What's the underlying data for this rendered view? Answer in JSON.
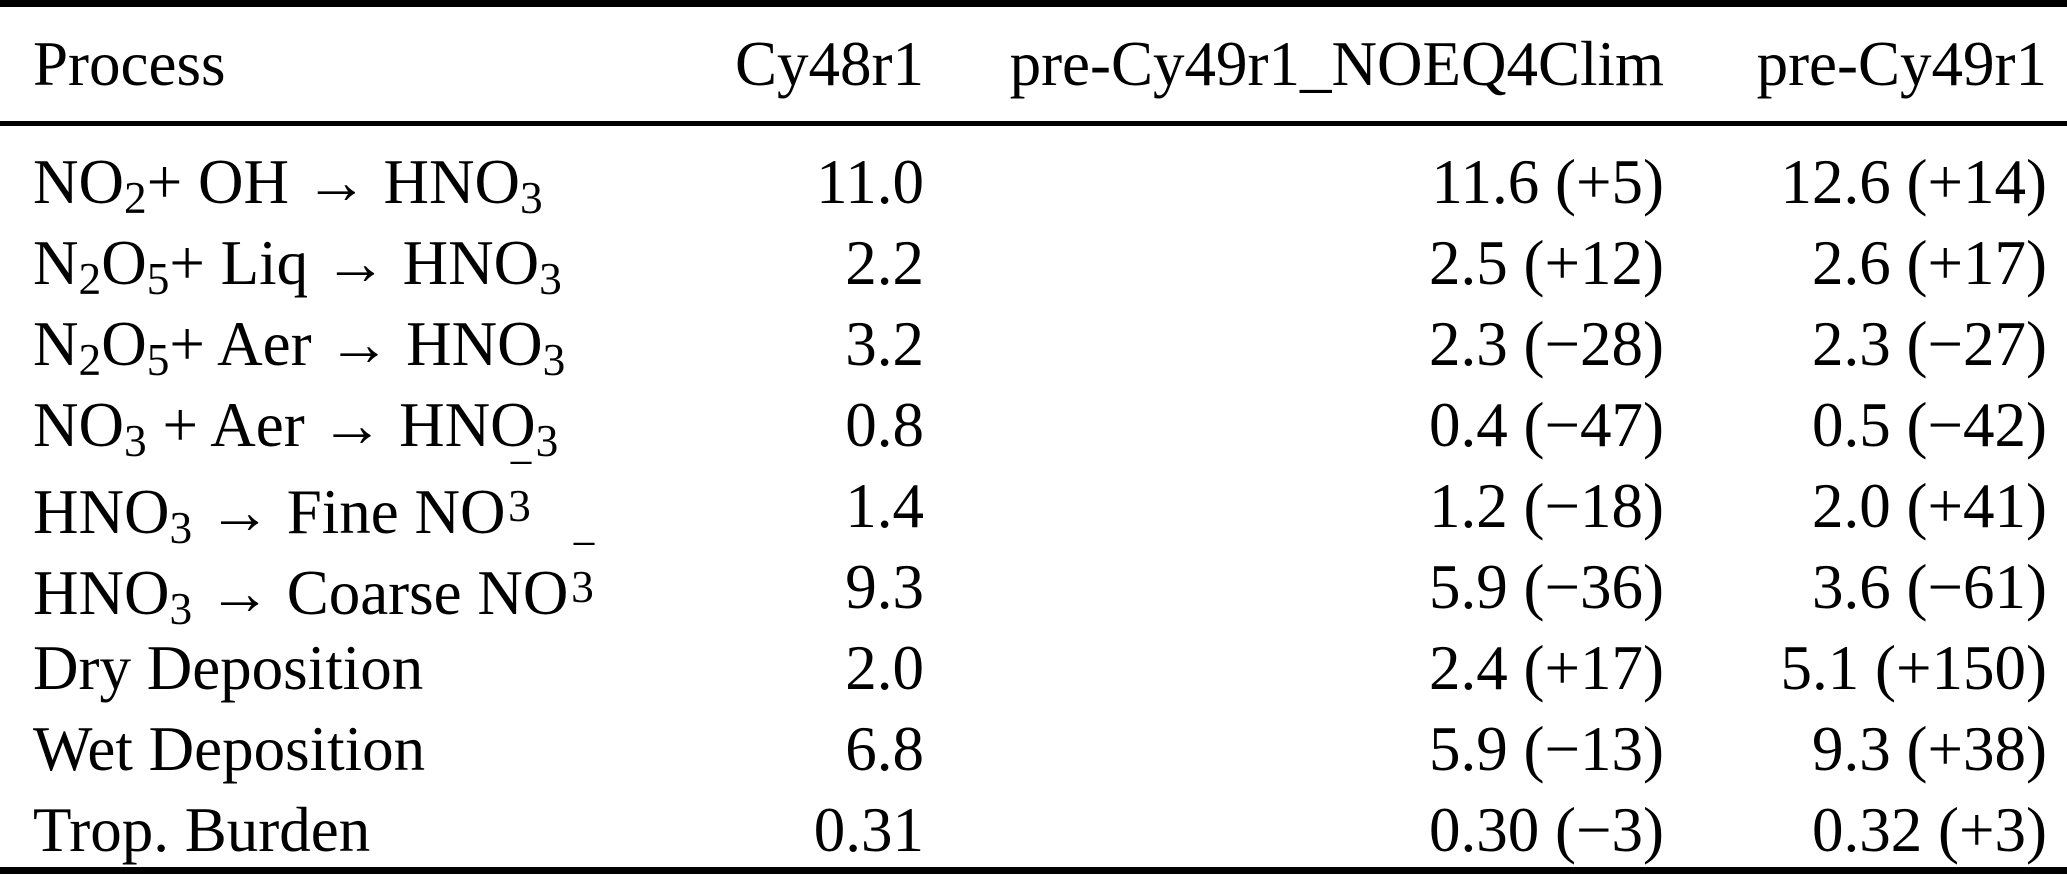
{
  "colors": {
    "text": "#000000",
    "background": "#ffffff",
    "rule": "#000000"
  },
  "table": {
    "headers": {
      "process": "Process",
      "cy48r1": "Cy48r1",
      "noeq4clim": "pre-Cy49r1_NOEQ4Clim",
      "pre_cy49r1": "pre-Cy49r1"
    },
    "rows": [
      {
        "process": [
          {
            "t": "NO"
          },
          {
            "sub": "2"
          },
          {
            "t": "+ OH → HNO"
          },
          {
            "sub": "3"
          }
        ],
        "cy48r1": "11.0",
        "noeq4clim": "11.6 (+5)",
        "pre_cy49r1": "12.6 (+14)"
      },
      {
        "process": [
          {
            "t": "N"
          },
          {
            "sub": "2"
          },
          {
            "t": "O"
          },
          {
            "sub": "5"
          },
          {
            "t": "+ Liq → HNO"
          },
          {
            "sub": "3"
          }
        ],
        "cy48r1": "2.2",
        "noeq4clim": "2.5 (+12)",
        "pre_cy49r1": "2.6 (+17)"
      },
      {
        "process": [
          {
            "t": "N"
          },
          {
            "sub": "2"
          },
          {
            "t": "O"
          },
          {
            "sub": "5"
          },
          {
            "t": "+ Aer → HNO"
          },
          {
            "sub": "3"
          }
        ],
        "cy48r1": "3.2",
        "noeq4clim": "2.3 (−28)",
        "pre_cy49r1": "2.3 (−27)"
      },
      {
        "process": [
          {
            "t": "NO"
          },
          {
            "sub": "3"
          },
          {
            "t": " + Aer → HNO"
          },
          {
            "sub": "3"
          }
        ],
        "cy48r1": "0.8",
        "noeq4clim": "0.4 (−47)",
        "pre_cy49r1": "0.5 (−42)"
      },
      {
        "process": [
          {
            "t": "HNO"
          },
          {
            "sub": "3"
          },
          {
            "t": " → Fine NO"
          },
          {
            "stack": {
              "sup": "−",
              "sub": "3"
            }
          }
        ],
        "cy48r1": "1.4",
        "noeq4clim": "1.2 (−18)",
        "pre_cy49r1": "2.0 (+41)"
      },
      {
        "process": [
          {
            "t": "HNO"
          },
          {
            "sub": "3"
          },
          {
            "t": " → Coarse NO"
          },
          {
            "stack": {
              "sup": "−",
              "sub": "3"
            }
          }
        ],
        "cy48r1": "9.3",
        "noeq4clim": "5.9 (−36)",
        "pre_cy49r1": "3.6 (−61)"
      },
      {
        "process": [
          {
            "t": "Dry Deposition"
          }
        ],
        "cy48r1": "2.0",
        "noeq4clim": "2.4 (+17)",
        "pre_cy49r1": "5.1 (+150)"
      },
      {
        "process": [
          {
            "t": "Wet Deposition"
          }
        ],
        "cy48r1": "6.8",
        "noeq4clim": "5.9 (−13)",
        "pre_cy49r1": "9.3 (+38)"
      },
      {
        "process": [
          {
            "t": "Trop. Burden"
          }
        ],
        "cy48r1": "0.31",
        "noeq4clim": "0.30 (−3)",
        "pre_cy49r1": "0.32 (+3)"
      }
    ]
  }
}
